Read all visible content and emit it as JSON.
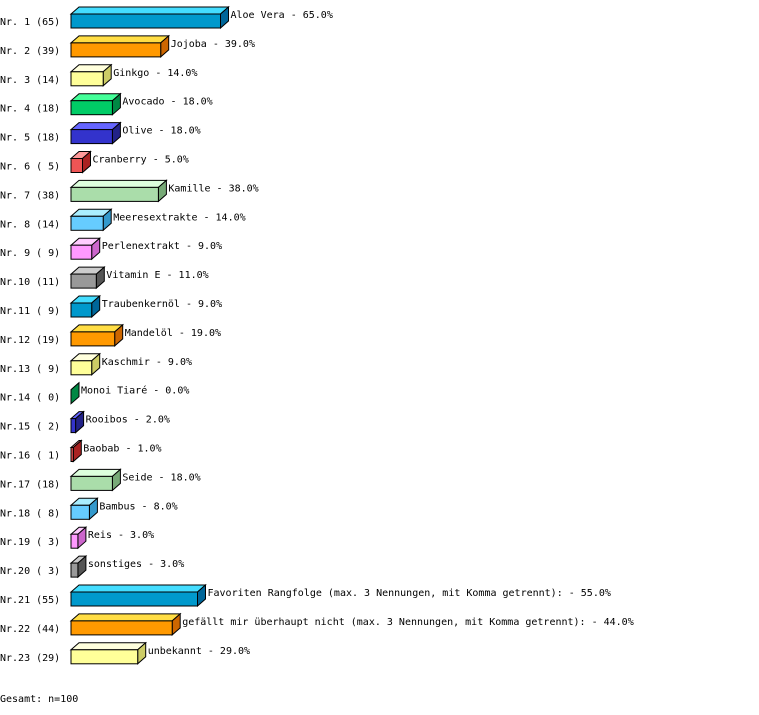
{
  "chart_data": {
    "type": "bar",
    "orientation": "horizontal",
    "style": "3d",
    "categories": [
      "Nr. 1 (65)",
      "Nr. 2 (39)",
      "Nr. 3 (14)",
      "Nr. 4 (18)",
      "Nr. 5 (18)",
      "Nr. 6 ( 5)",
      "Nr. 7 (38)",
      "Nr. 8 (14)",
      "Nr. 9 ( 9)",
      "Nr.10 (11)",
      "Nr.11 ( 9)",
      "Nr.12 (19)",
      "Nr.13 ( 9)",
      "Nr.14 ( 0)",
      "Nr.15 ( 2)",
      "Nr.16 ( 1)",
      "Nr.17 (18)",
      "Nr.18 ( 8)",
      "Nr.19 ( 3)",
      "Nr.20 ( 3)",
      "Nr.21 (55)",
      "Nr.22 (44)",
      "Nr.23 (29)"
    ],
    "labels": [
      "Aloe Vera -  65.0%",
      "Jojoba -  39.0%",
      "Ginkgo -  14.0%",
      "Avocado -  18.0%",
      "Olive -  18.0%",
      "Cranberry -   5.0%",
      "Kamille -  38.0%",
      "Meeresextrakte -  14.0%",
      "Perlenextrakt -   9.0%",
      "Vitamin E -  11.0%",
      "Traubenkernöl -   9.0%",
      "Mandelöl -  19.0%",
      "Kaschmir -   9.0%",
      "Monoi Tiaré -   0.0%",
      "Rooibos -   2.0%",
      "Baobab -   1.0%",
      "Seide -  18.0%",
      "Bambus -   8.0%",
      "Reis -   3.0%",
      "sonstiges -   3.0%",
      "Favoriten Rangfolge (max. 3 Nennungen, mit Komma getrennt): -  55.0%",
      "gefällt mir überhaupt nicht (max. 3 Nennungen, mit Komma getrennt): -  44.0%",
      "unbekannt -  29.0%"
    ],
    "values": [
      65,
      39,
      14,
      18,
      18,
      5,
      38,
      14,
      9,
      11,
      9,
      19,
      9,
      0,
      2,
      1,
      18,
      8,
      3,
      3,
      55,
      44,
      29
    ],
    "unit": "%",
    "xlim": [
      0,
      100
    ],
    "grid": false,
    "palette": [
      {
        "front": "#0099cc",
        "top": "#44ddff",
        "side": "#006699"
      },
      {
        "front": "#ff9900",
        "top": "#ffdd44",
        "side": "#cc6600"
      },
      {
        "front": "#ffff99",
        "top": "#ffffdd",
        "side": "#cccc66"
      },
      {
        "front": "#00cc66",
        "top": "#44ff99",
        "side": "#008844"
      },
      {
        "front": "#3333cc",
        "top": "#6666ff",
        "side": "#222288"
      },
      {
        "front": "#ee5555",
        "top": "#ff9999",
        "side": "#aa2222"
      },
      {
        "front": "#aaddaa",
        "top": "#ddffdd",
        "side": "#77aa77"
      },
      {
        "front": "#66ccff",
        "top": "#aaeeff",
        "side": "#3399cc"
      },
      {
        "front": "#ff99ff",
        "top": "#ffccff",
        "side": "#cc66cc"
      },
      {
        "front": "#999999",
        "top": "#cccccc",
        "side": "#555555"
      }
    ]
  },
  "footer": {
    "total": "Gesamt: n=100"
  }
}
